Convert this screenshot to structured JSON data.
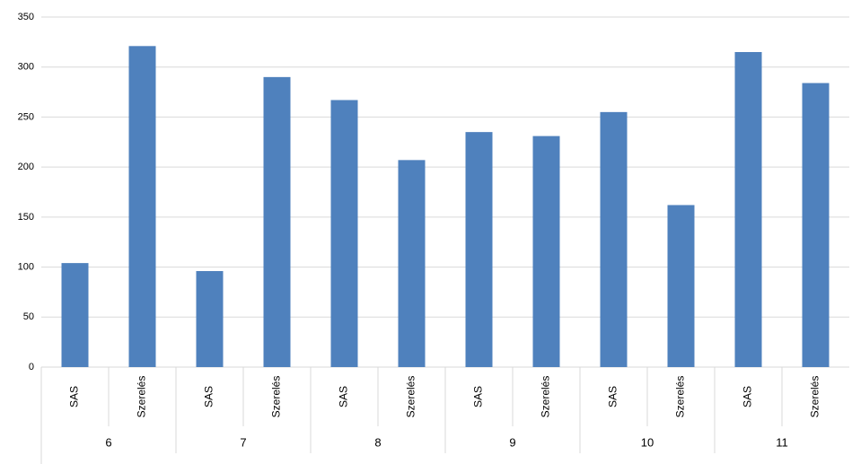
{
  "chart_data": {
    "type": "bar",
    "categories": [
      "SAS",
      "Szerelés",
      "SAS",
      "Szerelés",
      "SAS",
      "Szerelés",
      "SAS",
      "Szerelés",
      "SAS",
      "Szerelés",
      "SAS",
      "Szerelés"
    ],
    "groups": [
      "6",
      "7",
      "8",
      "9",
      "10",
      "11"
    ],
    "values": [
      104,
      321,
      96,
      290,
      267,
      207,
      235,
      231,
      255,
      162,
      315,
      284
    ],
    "color": "#4f81bd",
    "ylim": [
      0,
      350
    ],
    "yticks": [
      0,
      50,
      100,
      150,
      200,
      250,
      300,
      350
    ],
    "grid": true
  }
}
